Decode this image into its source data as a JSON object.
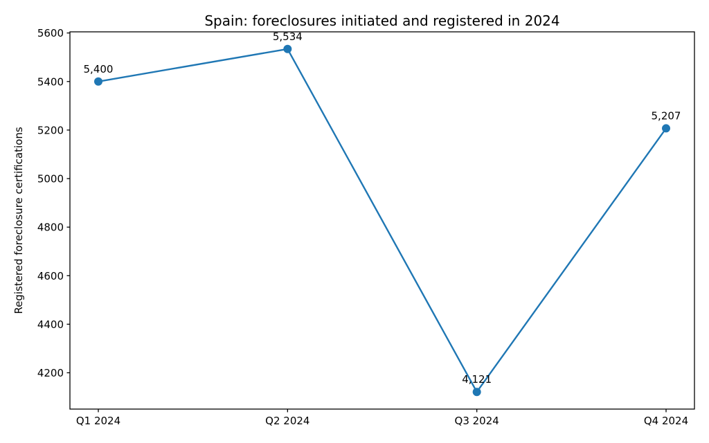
{
  "chart_data": {
    "type": "line",
    "title": "Spain: foreclosures initiated and registered in 2024",
    "xlabel": "",
    "ylabel": "Registered foreclosure certifications",
    "categories": [
      "Q1 2024",
      "Q2 2024",
      "Q3 2024",
      "Q4 2024"
    ],
    "series": [
      {
        "name": "Registered foreclosure certifications",
        "values": [
          5400,
          5534,
          4121,
          5207
        ],
        "point_labels": [
          "5,400",
          "5,534",
          "4,121",
          "5,207"
        ],
        "color": "#1f77b4"
      }
    ],
    "yticks": [
      4200,
      4400,
      4600,
      4800,
      5000,
      5200,
      5400,
      5600
    ],
    "ylim": [
      4050.35,
      5604.65
    ],
    "xlim": [
      -0.15,
      3.15
    ],
    "grid": false,
    "legend": "none",
    "marker": "circle",
    "spine_color": "#000000",
    "background_color": "#ffffff"
  }
}
